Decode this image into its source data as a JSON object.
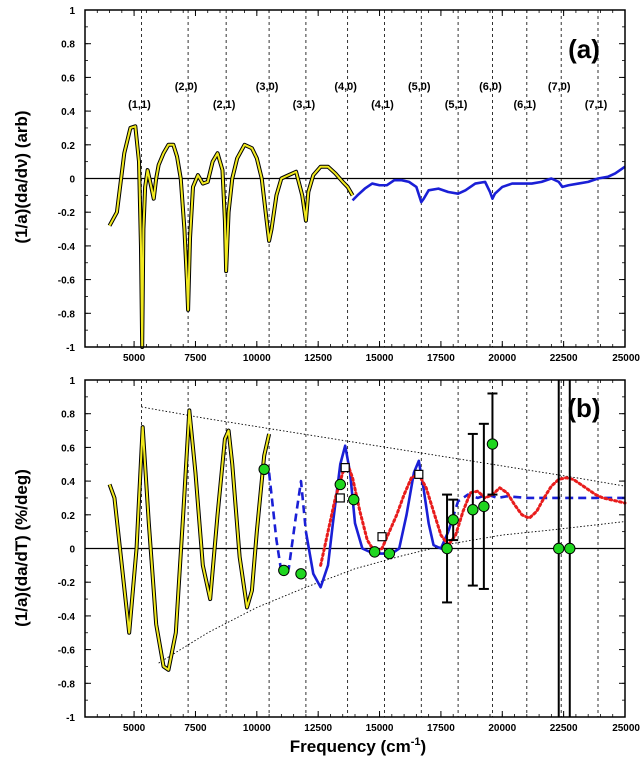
{
  "chart_data": [
    {
      "panel": "(a)",
      "type": "line",
      "ylabel": "(1/a)(da/dν) (arb)",
      "xlim": [
        3000,
        25000
      ],
      "ylim": [
        -1,
        1
      ],
      "x_ticks": [
        5000,
        7500,
        10000,
        12500,
        15000,
        17500,
        20000,
        22500,
        25000
      ],
      "y_ticks": [
        1,
        0.8,
        0.6,
        0.4,
        0.2,
        0,
        -0.2,
        -0.4,
        -0.6,
        -0.8,
        -1
      ],
      "y_tick_labels": [
        "1",
        "0.8",
        "0.6",
        "0.4",
        "0.2",
        "0",
        "-0.2",
        "-0.4",
        "-0.6",
        "-0.8",
        "-1"
      ],
      "zero_line": 0,
      "bands": [
        {
          "label": "(1,1)",
          "x": 5300
        },
        {
          "label": "(2,0)",
          "x": 7200
        },
        {
          "label": "(2,1)",
          "x": 8750
        },
        {
          "label": "(3,0)",
          "x": 10500
        },
        {
          "label": "(3,1)",
          "x": 12000
        },
        {
          "label": "(4,0)",
          "x": 13700
        },
        {
          "label": "(4,1)",
          "x": 15200
        },
        {
          "label": "(5,0)",
          "x": 16700
        },
        {
          "label": "(5,1)",
          "x": 18200
        },
        {
          "label": "(6,0)",
          "x": 19600
        },
        {
          "label": "(6,1)",
          "x": 21000
        },
        {
          "label": "(7,0)",
          "x": 22400
        },
        {
          "label": "(7,1)",
          "x": 23900
        }
      ],
      "series": [
        {
          "color": "#f2ea1f",
          "x": [
            4000,
            4300,
            4600,
            4850,
            5050,
            5200,
            5280,
            5330,
            5380,
            5450,
            5550,
            5700,
            5800,
            5900,
            6000,
            6200,
            6400,
            6600,
            6750,
            6900,
            7050,
            7150,
            7200,
            7280,
            7400,
            7600,
            7800,
            8000,
            8200,
            8400,
            8600,
            8700,
            8750,
            8850,
            9000,
            9200,
            9500,
            9800,
            10000,
            10200,
            10400,
            10500,
            10600,
            10800,
            11000,
            11300,
            11600,
            11850,
            12000,
            12100,
            12300,
            12600,
            12900,
            13200,
            13500,
            13700,
            13900
          ],
          "values": [
            -0.28,
            -0.2,
            0.15,
            0.3,
            0.31,
            0.1,
            -0.4,
            -1.0,
            -0.3,
            -0.05,
            0.05,
            -0.05,
            -0.12,
            0.0,
            0.08,
            0.15,
            0.2,
            0.2,
            0.13,
            0.0,
            -0.3,
            -0.6,
            -0.78,
            -0.35,
            -0.05,
            0.02,
            -0.03,
            -0.02,
            0.1,
            0.15,
            0.05,
            -0.25,
            -0.55,
            -0.2,
            0.0,
            0.12,
            0.2,
            0.18,
            0.12,
            0.0,
            -0.25,
            -0.37,
            -0.3,
            -0.1,
            0.0,
            0.02,
            0.04,
            -0.1,
            -0.25,
            -0.08,
            0.02,
            0.07,
            0.07,
            0.03,
            -0.02,
            -0.05,
            -0.1
          ]
        },
        {
          "color": "#1a1fd6",
          "x": [
            13900,
            14100,
            14400,
            14700,
            15000,
            15300,
            15600,
            15900,
            16200,
            16500,
            16700,
            16800,
            17000,
            17400,
            17800,
            18200,
            18500,
            18900,
            19300,
            19500,
            19600,
            19700,
            20000,
            20400,
            20800,
            21200,
            21600,
            22000,
            22300,
            22450,
            22700,
            23100,
            23500,
            23900,
            24300,
            24600,
            25000
          ],
          "values": [
            -0.13,
            -0.1,
            -0.06,
            -0.03,
            -0.04,
            -0.04,
            -0.01,
            -0.01,
            -0.02,
            -0.05,
            -0.14,
            -0.12,
            -0.07,
            -0.06,
            -0.08,
            -0.09,
            -0.07,
            -0.03,
            -0.02,
            -0.08,
            -0.12,
            -0.09,
            -0.05,
            -0.03,
            -0.03,
            -0.03,
            -0.02,
            0.0,
            -0.02,
            -0.05,
            -0.04,
            -0.03,
            -0.02,
            0.0,
            0.01,
            0.03,
            0.07
          ]
        }
      ]
    },
    {
      "panel": "(b)",
      "type": "line",
      "xlabel": "Frequency (cm⁻¹)",
      "ylabel": "(1/a)(da/dT)  (%/deg)",
      "xlim": [
        3000,
        25000
      ],
      "ylim": [
        -1,
        1
      ],
      "x_ticks": [
        5000,
        7500,
        10000,
        12500,
        15000,
        17500,
        20000,
        22500,
        25000
      ],
      "y_ticks": [
        1,
        0.8,
        0.6,
        0.4,
        0.2,
        0,
        -0.2,
        -0.4,
        -0.6,
        -0.8,
        -1
      ],
      "y_tick_labels": [
        "1",
        "0.8",
        "0.6",
        "0.4",
        "0.2",
        "0",
        "-0.2",
        "-0.4",
        "-0.6",
        "-0.8",
        "-1"
      ],
      "zero_line": 0,
      "band_lines_x": [
        5300,
        7200,
        8750,
        10500,
        12000,
        13700,
        15200,
        16700,
        18200,
        19600,
        21000,
        22400,
        23900
      ],
      "envelope_upper": {
        "x": [
          5300,
          8000,
          11000,
          14000,
          17000,
          20000,
          23000,
          25000
        ],
        "values": [
          0.84,
          0.77,
          0.7,
          0.63,
          0.56,
          0.49,
          0.42,
          0.37
        ]
      },
      "envelope_lower": {
        "x": [
          6000,
          8000,
          10000,
          12000,
          14000,
          16000,
          18000,
          20000,
          22000,
          25000
        ],
        "values": [
          -0.68,
          -0.5,
          -0.35,
          -0.23,
          -0.12,
          -0.04,
          0.03,
          0.08,
          0.11,
          0.16
        ]
      },
      "series": [
        {
          "color": "#f2ea1f",
          "x": [
            4000,
            4200,
            4500,
            4800,
            5100,
            5350,
            5600,
            5900,
            6200,
            6400,
            6700,
            7000,
            7250,
            7500,
            7800,
            8100,
            8400,
            8700,
            8850,
            9000,
            9300,
            9600,
            9800,
            10000,
            10300,
            10500
          ],
          "values": [
            0.38,
            0.3,
            -0.1,
            -0.5,
            0.0,
            0.72,
            0.15,
            -0.45,
            -0.7,
            -0.72,
            -0.5,
            0.2,
            0.82,
            0.45,
            -0.1,
            -0.3,
            0.2,
            0.65,
            0.7,
            0.5,
            -0.05,
            -0.35,
            -0.25,
            0.1,
            0.55,
            0.68
          ]
        },
        {
          "color": "#1a1fd6",
          "dash": "dashed",
          "x": [
            10500,
            10800,
            11000,
            11300,
            11600,
            11800,
            12000
          ],
          "values": [
            0.45,
            0.05,
            -0.14,
            -0.12,
            0.2,
            0.4,
            0.1
          ]
        },
        {
          "color": "#1a1fd6",
          "x": [
            12000,
            12300,
            12600,
            12900,
            13100,
            13400,
            13600,
            13800,
            14000,
            14300,
            14600,
            14900,
            15200,
            15500,
            15800,
            16100,
            16400,
            16600,
            16800,
            17000,
            17200,
            17500,
            17800
          ],
          "values": [
            0.1,
            -0.15,
            -0.23,
            -0.1,
            0.15,
            0.5,
            0.61,
            0.45,
            0.15,
            0.0,
            -0.02,
            -0.03,
            -0.03,
            -0.03,
            0.0,
            0.2,
            0.45,
            0.52,
            0.35,
            0.15,
            0.02,
            0.0,
            0.1
          ]
        },
        {
          "color": "#1a1fd6",
          "dash": "dashed",
          "x": [
            17800,
            18200,
            18600,
            19000,
            19400,
            19800,
            20200,
            21000,
            22000,
            23000,
            24000,
            25000
          ],
          "values": [
            0.1,
            0.28,
            0.32,
            0.3,
            0.32,
            0.3,
            0.31,
            0.3,
            0.3,
            0.3,
            0.3,
            0.3
          ]
        },
        {
          "color": "#e81c1c",
          "dash": "dotted",
          "x": [
            12600,
            12900,
            13200,
            13500,
            13700,
            13900,
            14200,
            14500,
            14800,
            15100,
            15400,
            15700,
            16000,
            16300,
            16600,
            16900,
            17200,
            17500,
            17800,
            18100,
            18400,
            18700,
            19000,
            19300,
            19600,
            19900,
            20200,
            20500,
            20800,
            21100,
            21400,
            21700,
            22000,
            22300,
            22600,
            22900,
            23200,
            23500,
            23800,
            24100,
            24400,
            24700,
            25000
          ],
          "values": [
            -0.1,
            0.1,
            0.3,
            0.45,
            0.5,
            0.42,
            0.22,
            0.05,
            -0.02,
            0.0,
            0.1,
            0.2,
            0.32,
            0.42,
            0.44,
            0.36,
            0.22,
            0.08,
            0.02,
            0.08,
            0.22,
            0.33,
            0.34,
            0.3,
            0.32,
            0.36,
            0.33,
            0.26,
            0.2,
            0.18,
            0.22,
            0.3,
            0.37,
            0.41,
            0.42,
            0.41,
            0.38,
            0.35,
            0.32,
            0.3,
            0.29,
            0.28,
            0.27
          ]
        }
      ],
      "points": {
        "x": [
          10300,
          11100,
          11800,
          13400,
          13950,
          14800,
          15400,
          17750,
          18000,
          18800,
          19250,
          19600,
          22300,
          22750
        ],
        "values": [
          0.47,
          -0.13,
          -0.15,
          0.38,
          0.29,
          -0.02,
          -0.03,
          0.0,
          0.17,
          0.23,
          0.25,
          0.62,
          0.0,
          0.0
        ],
        "err_low": [
          0,
          0,
          0,
          0,
          0,
          0,
          0,
          0.32,
          0.12,
          0.45,
          0.49,
          0.3,
          1.0,
          1.0
        ],
        "err_high": [
          0,
          0,
          0,
          0,
          0,
          0,
          0,
          0.32,
          0.12,
          0.45,
          0.49,
          0.3,
          1.0,
          1.0
        ],
        "color": "#1fd61f"
      },
      "squares": {
        "x": [
          13400,
          13600,
          15100,
          16600
        ],
        "values": [
          0.3,
          0.48,
          0.07,
          0.44
        ]
      }
    }
  ],
  "labels": {
    "panel_a": "(a)",
    "panel_b": "(b)",
    "ylabel_a": "(1/a)(da/dν) (arb)",
    "ylabel_b": "(1/a)(da/dT)  (%/deg)",
    "xlabel": "Frequency (cm",
    "xlabel_sup": "-1",
    "xlabel_end": ")"
  }
}
